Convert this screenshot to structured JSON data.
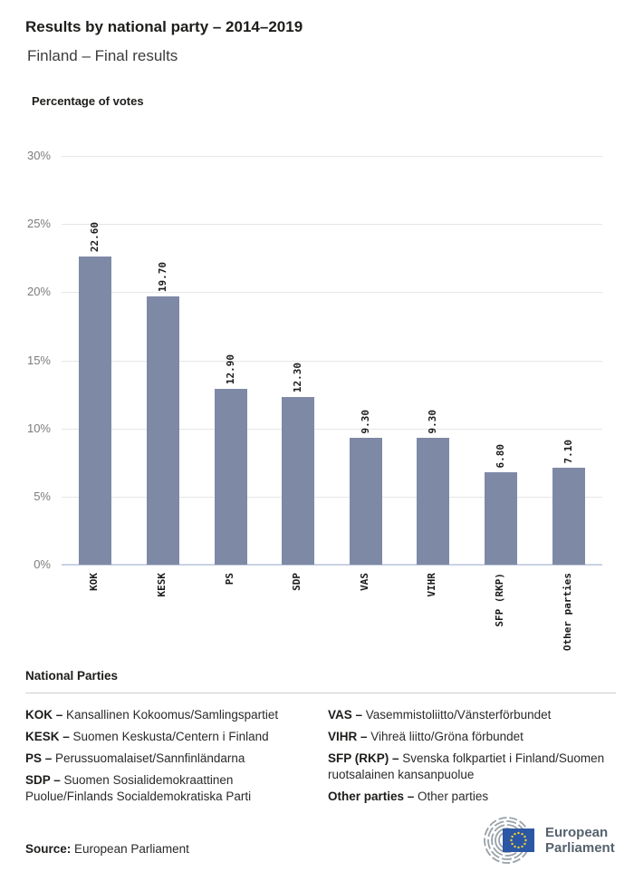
{
  "header": {
    "title": "Results by national party – 2014–2019",
    "subtitle": "Finland – Final results"
  },
  "chart_data": {
    "type": "bar",
    "title": "Results by national party – 2014–2019",
    "subtitle": "Finland – Final results",
    "ylabel": "Percentage of votes",
    "categories": [
      "KOK",
      "KESK",
      "PS",
      "SDP",
      "VAS",
      "VIHR",
      "SFP (RKP)",
      "Other parties"
    ],
    "values": [
      22.6,
      19.7,
      12.9,
      12.3,
      9.3,
      9.3,
      6.8,
      7.1
    ],
    "value_labels": [
      "22.60",
      "19.70",
      "12.90",
      "12.30",
      "9.30",
      "9.30",
      "6.80",
      "7.10"
    ],
    "ylim": [
      0,
      30
    ],
    "ytick_step": 5,
    "ytick_labels": [
      "0%",
      "5%",
      "10%",
      "15%",
      "20%",
      "25%",
      "30%"
    ],
    "grid": true,
    "legend_position": "none",
    "bar_color": "#7e89a6",
    "gridline_color": "#e6e6e6",
    "baseline_color": "#c9d2e4"
  },
  "legend": {
    "heading": "National Parties",
    "columns": [
      [
        {
          "abbr": "KOK –",
          "name": "Kansallinen Kokoomus/Samlingspartiet"
        },
        {
          "abbr": "KESK –",
          "name": "Suomen Keskusta/Centern i Finland"
        },
        {
          "abbr": "PS –",
          "name": "Perussuomalaiset/Sannfinländarna"
        },
        {
          "abbr": "SDP –",
          "name": "Suomen Sosialidemokraattinen Puolue/Finlands Socialdemokratiska Parti"
        }
      ],
      [
        {
          "abbr": "VAS –",
          "name": "Vasemmistoliitto/Vänsterförbundet"
        },
        {
          "abbr": "VIHR –",
          "name": "Vihreä liitto/Gröna förbundet"
        },
        {
          "abbr": "SFP (RKP) –",
          "name": "Svenska folkpartiet i Finland/Suomen ruotsalainen kansanpuolue"
        },
        {
          "abbr": "Other parties –",
          "name": "Other parties"
        }
      ]
    ]
  },
  "footer": {
    "source_label": "Source:",
    "source_value": "European Parliament",
    "logo": {
      "line1": "European",
      "line2": "Parliament",
      "flag_color": "#2b57a5",
      "star_color": "#f8d12e",
      "arc_color": "#99a1a8",
      "text_color": "#55626e"
    }
  }
}
